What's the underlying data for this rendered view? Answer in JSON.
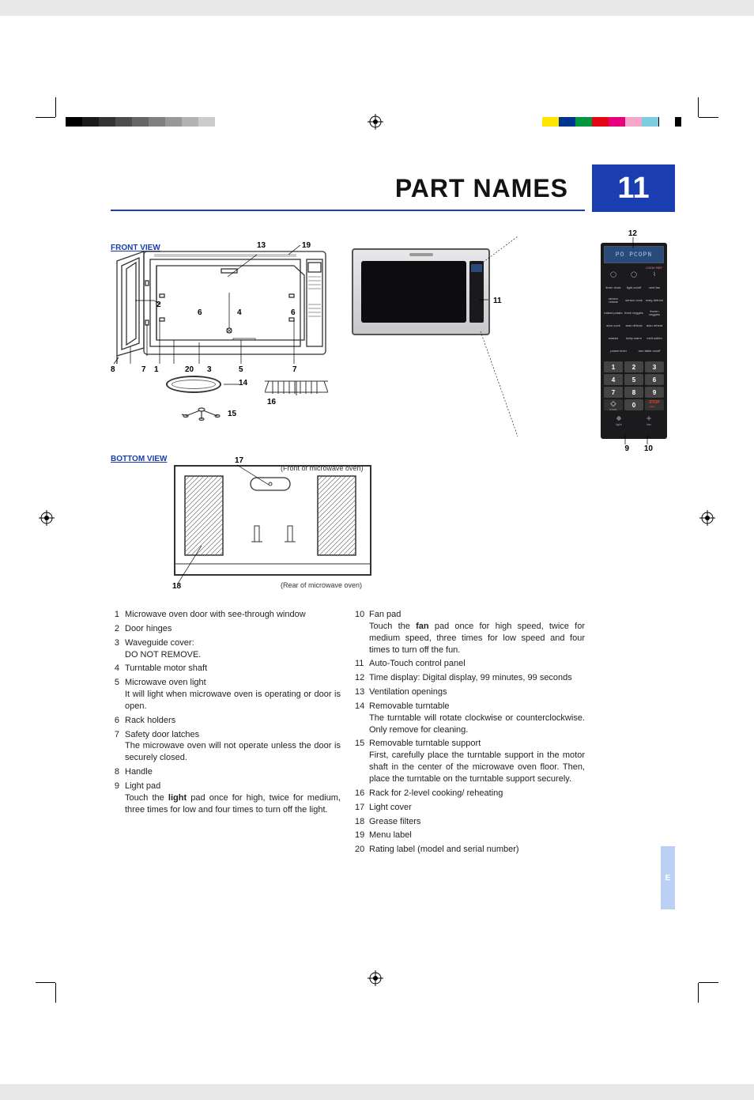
{
  "page": {
    "title": "PART NAMES",
    "number": "11",
    "side_tab_label": "E",
    "accent_color": "#1a3db0",
    "sidebar_color": "#bcd0f5"
  },
  "diagrams": {
    "front_view_label": "FRONT VIEW",
    "bottom_view_label": "BOTTOM VIEW",
    "front_caption": "(Front of microwave oven)",
    "rear_caption": "(Rear of microwave oven)",
    "callouts": {
      "c1": "1",
      "c2": "2",
      "c3": "3",
      "c4": "4",
      "c5": "5",
      "c6": "6",
      "c7": "7",
      "c8": "8",
      "c9": "9",
      "c10": "10",
      "c11": "11",
      "c12": "12",
      "c13": "13",
      "c14": "14",
      "c15": "15",
      "c16": "16",
      "c17": "17",
      "c18": "18",
      "c19": "19",
      "c20": "20"
    }
  },
  "control_panel": {
    "display": "PO PCOPN",
    "row1": [
      "timer clock",
      "light on/off",
      "vent fan"
    ],
    "row2": [
      "sensor reheat",
      "sensor cook",
      "easy defrost"
    ],
    "row3": [
      "baked potato",
      "fresh veggies",
      "frozen veggies"
    ],
    "row4": [
      "slow cook",
      "auto defrost",
      "auto reheat"
    ],
    "row5": [
      "snacks",
      "keep warm",
      "melt soften"
    ],
    "row6": [
      "power level",
      "turn table on/off"
    ],
    "keys": [
      "1",
      "2",
      "3",
      "4",
      "5",
      "6",
      "7",
      "8",
      "9",
      "◇",
      "0",
      "STOP clear"
    ],
    "start_label": "START add min",
    "footer": [
      "light",
      "fan"
    ]
  },
  "parts_left": [
    {
      "n": "1",
      "main": "Microwave oven door with see-through window"
    },
    {
      "n": "2",
      "main": "Door hinges"
    },
    {
      "n": "3",
      "main": "Waveguide cover:",
      "sub": "DO NOT REMOVE."
    },
    {
      "n": "4",
      "main": "Turntable motor shaft"
    },
    {
      "n": "5",
      "main": "Microwave oven light",
      "sub": "It will light when microwave oven is operating or door is open."
    },
    {
      "n": "6",
      "main": "Rack holders"
    },
    {
      "n": "7",
      "main": "Safety door latches",
      "sub": "The microwave oven will not operate unless the door is securely closed."
    },
    {
      "n": "8",
      "main": "Handle"
    },
    {
      "n": "9",
      "main": "Light pad",
      "sub": "Touch the <b>light</b> pad once for high, twice for medium, three times for low and four times to turn off the light."
    }
  ],
  "parts_right": [
    {
      "n": "10",
      "main": "Fan pad",
      "sub": "Touch the <b>fan</b> pad once for high speed, twice for medium speed, three times for low speed and four times to turn off the fun."
    },
    {
      "n": "11",
      "main": "Auto-Touch control panel"
    },
    {
      "n": "12",
      "main": "Time display: Digital display, 99 minutes, 99 seconds"
    },
    {
      "n": "13",
      "main": "Ventilation openings"
    },
    {
      "n": "14",
      "main": "Removable turntable",
      "sub": "The turntable will rotate clockwise or counterclockwise. Only remove for cleaning."
    },
    {
      "n": "15",
      "main": "Removable turntable support",
      "sub": "First, carefully place the turntable support in the motor shaft in the center of the microwave oven floor. Then, place the turntable on the turntable support securely."
    },
    {
      "n": "16",
      "main": "Rack for 2-level cooking/ reheating"
    },
    {
      "n": "17",
      "main": "Light cover"
    },
    {
      "n": "18",
      "main": "Grease filters"
    },
    {
      "n": "19",
      "main": "Menu label"
    },
    {
      "n": "20",
      "main": "Rating label (model and serial number)"
    }
  ],
  "print_marks": {
    "greyscale": [
      "#000000",
      "#1a1a1a",
      "#333333",
      "#4d4d4d",
      "#666666",
      "#808080",
      "#999999",
      "#b3b3b3",
      "#cccccc",
      "#ffffff"
    ],
    "colors": [
      "#ffe500",
      "#00338d",
      "#009640",
      "#e30613",
      "#e6007e",
      "#f5a6c9",
      "#7bcde0",
      "#ffffff"
    ]
  }
}
